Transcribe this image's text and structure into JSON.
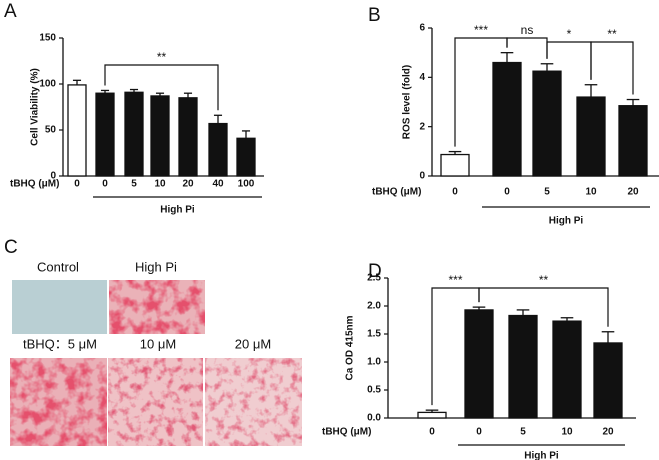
{
  "chart_data": [
    {
      "type": "bar",
      "panel": "A",
      "ylabel": "Cell Viability (%)",
      "xlabel": "tBHQ (μM)",
      "group_label": "High Pi",
      "categories": [
        "0",
        "0",
        "5",
        "10",
        "20",
        "40",
        "100"
      ],
      "values": [
        99,
        90,
        91,
        87,
        85,
        57,
        41
      ],
      "errors": [
        5,
        3,
        3,
        3,
        5,
        9,
        8
      ],
      "colors": [
        "#ffffff",
        "#111111",
        "#111111",
        "#111111",
        "#111111",
        "#111111",
        "#111111"
      ],
      "ylim": [
        0,
        150
      ],
      "yticks": [
        0,
        50,
        100,
        150
      ],
      "brackets": [
        {
          "text": "**",
          "between": [
            1,
            5
          ]
        }
      ]
    },
    {
      "type": "bar",
      "panel": "B",
      "ylabel": "ROS level (fold)",
      "xlabel": "tBHQ (μM)",
      "group_label": "High Pi",
      "categories": [
        "0",
        "0",
        "5",
        "10",
        "20"
      ],
      "values": [
        0.87,
        4.6,
        4.25,
        3.2,
        2.85
      ],
      "errors": [
        0.12,
        0.4,
        0.3,
        0.5,
        0.25
      ],
      "colors": [
        "#ffffff",
        "#111111",
        "#111111",
        "#111111",
        "#111111"
      ],
      "ylim": [
        0,
        6
      ],
      "yticks": [
        0,
        2,
        4,
        6
      ],
      "brackets": [
        {
          "text": "***",
          "between": [
            0,
            1
          ]
        },
        {
          "text": "ns",
          "between": [
            1,
            2
          ]
        },
        {
          "text": "*",
          "between": [
            2,
            3
          ]
        },
        {
          "text": "**",
          "between": [
            3,
            4
          ]
        }
      ]
    },
    {
      "type": "bar",
      "panel": "D",
      "ylabel": "Ca OD 415nm",
      "xlabel": "tBHQ (μM)",
      "group_label": "High Pi",
      "categories": [
        "0",
        "0",
        "5",
        "10",
        "20"
      ],
      "values": [
        0.1,
        1.93,
        1.83,
        1.73,
        1.34
      ],
      "errors": [
        0.04,
        0.05,
        0.1,
        0.06,
        0.2
      ],
      "colors": [
        "#ffffff",
        "#111111",
        "#111111",
        "#111111",
        "#111111"
      ],
      "ylim": [
        0,
        2.5
      ],
      "yticks": [
        {
          "value": 0,
          "label": "0.0"
        },
        0.5,
        {
          "value": 1,
          "label": "1.0"
        },
        1.5,
        {
          "value": 2,
          "label": "2.0"
        },
        2.5
      ],
      "brackets": [
        {
          "text": "***",
          "between": [
            0,
            1
          ]
        },
        {
          "text": "**",
          "between": [
            1,
            4
          ]
        }
      ]
    }
  ],
  "panel_c": {
    "letter": "C",
    "top_labels": [
      "Control",
      "High Pi"
    ],
    "bottom_labels": [
      "tBHQ：5 μM",
      "10 μM",
      "20 μM"
    ]
  }
}
